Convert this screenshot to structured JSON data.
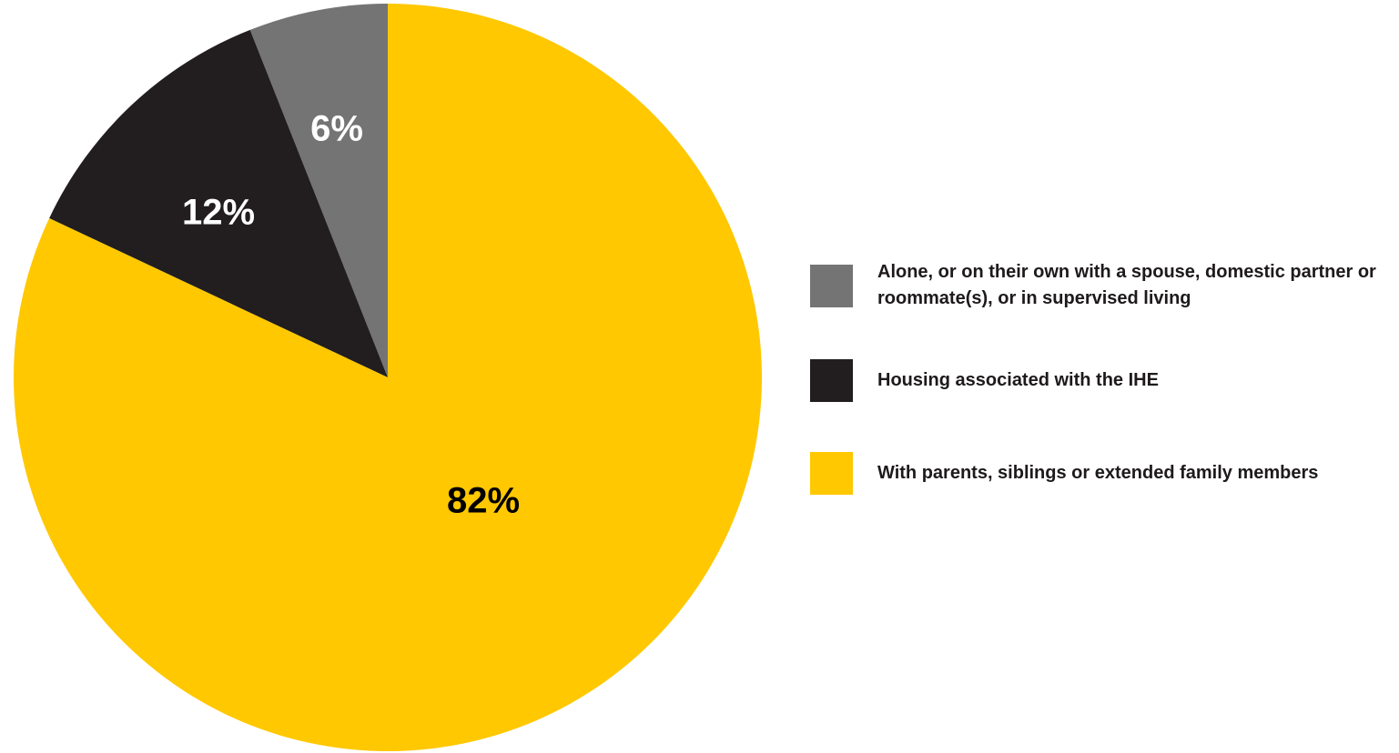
{
  "chart_data": {
    "type": "pie",
    "title": "",
    "start_angle": "12 o'clock",
    "direction": "counter-clockwise from top: 6%, then 12%, then 82%",
    "slices": [
      {
        "label": "Alone, or on their own with a spouse, domestic partner or roommate(s), or in supervised living",
        "value": 6,
        "display": "6%",
        "color": "#747474",
        "text_color": "#ffffff"
      },
      {
        "label": "Housing associated with the IHE",
        "value": 12,
        "display": "12%",
        "color": "#221e1f",
        "text_color": "#ffffff"
      },
      {
        "label": "With parents, siblings or extended family members",
        "value": 82,
        "display": "82%",
        "color": "#ffc800",
        "text_color": "#000000"
      }
    ],
    "legend_position": "right"
  },
  "legend": {
    "items": [
      {
        "label": "Alone, or on their own with a spouse, domestic partner or roommate(s), or in supervised living",
        "color": "#747474"
      },
      {
        "label": "Housing associated with the IHE",
        "color": "#221e1f"
      },
      {
        "label": "With parents, siblings or extended family members",
        "color": "#ffc800"
      }
    ]
  }
}
